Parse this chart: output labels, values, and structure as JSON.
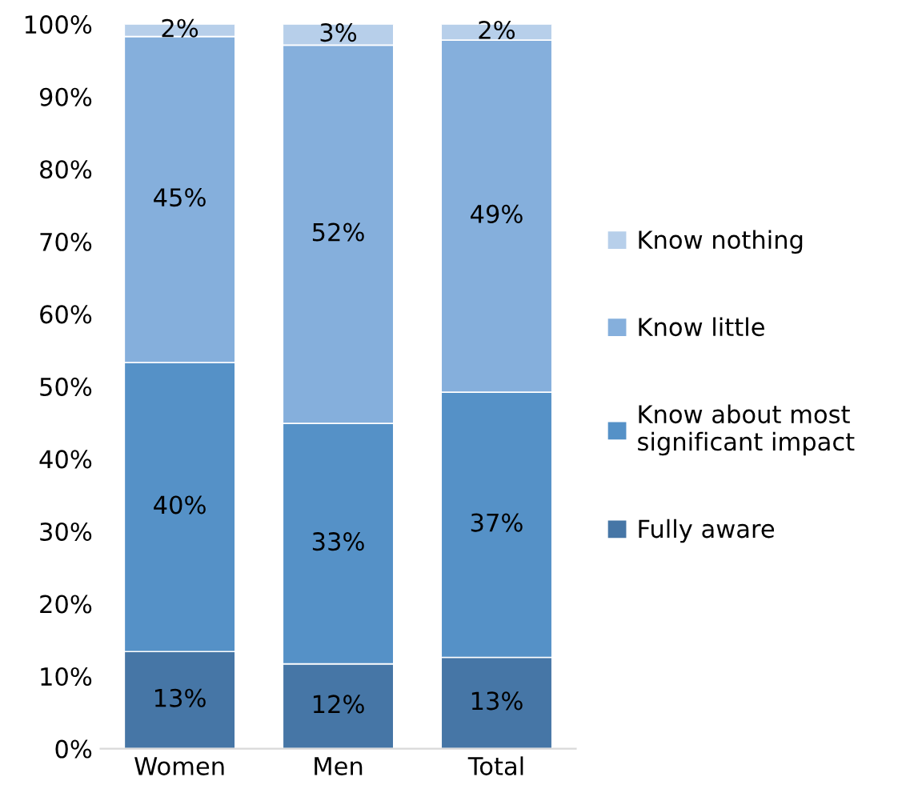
{
  "chart_data": {
    "type": "bar",
    "stacked": true,
    "categories": [
      "Women",
      "Men",
      "Total"
    ],
    "series": [
      {
        "name": "Fully aware",
        "color": "#4676a6",
        "values": [
          13.4,
          11.7,
          12.6
        ],
        "value_labels": [
          "13%",
          "12%",
          "13%"
        ]
      },
      {
        "name": "Know about most significant impact",
        "color": "#5591c7",
        "values": [
          39.9,
          33.2,
          36.6
        ],
        "value_labels": [
          "40%",
          "33%",
          "37%"
        ]
      },
      {
        "name": "Know little",
        "color": "#85afdc",
        "values": [
          45.0,
          52.2,
          48.6
        ],
        "value_labels": [
          "45%",
          "52%",
          "49%"
        ]
      },
      {
        "name": "Know nothing",
        "color": "#b7cfea",
        "values": [
          1.7,
          2.9,
          2.2
        ],
        "value_labels": [
          "2%",
          "3%",
          "2%"
        ]
      }
    ],
    "ylim": [
      0,
      100
    ],
    "yticks": [
      {
        "value": 0,
        "label": "0%"
      },
      {
        "value": 10,
        "label": "10%"
      },
      {
        "value": 20,
        "label": "20%"
      },
      {
        "value": 30,
        "label": "30%"
      },
      {
        "value": 40,
        "label": "40%"
      },
      {
        "value": 50,
        "label": "50%"
      },
      {
        "value": 60,
        "label": "60%"
      },
      {
        "value": 70,
        "label": "70%"
      },
      {
        "value": 80,
        "label": "80%"
      },
      {
        "value": 90,
        "label": "90%"
      },
      {
        "value": 100,
        "label": "100%"
      }
    ],
    "grid": false,
    "legend": "right"
  }
}
